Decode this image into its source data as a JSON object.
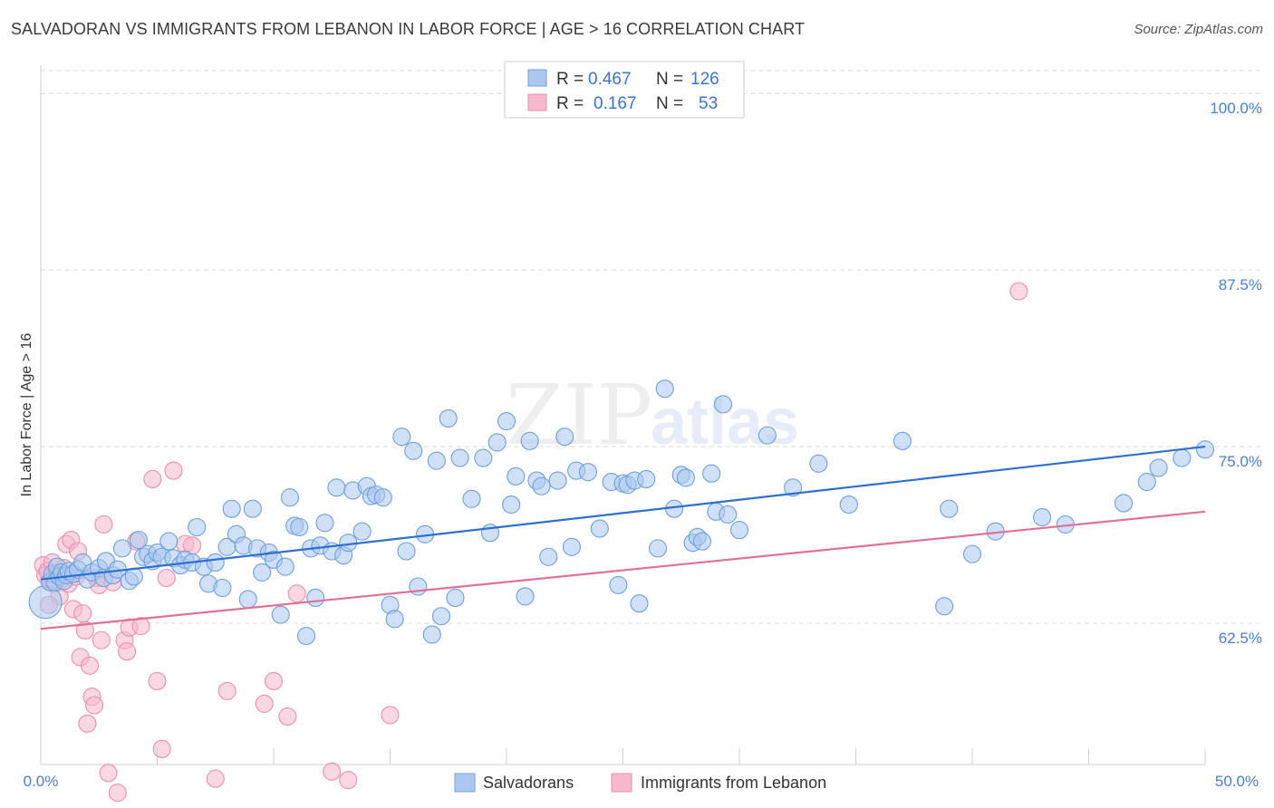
{
  "title": "SALVADORAN VS IMMIGRANTS FROM LEBANON IN LABOR FORCE | AGE > 16 CORRELATION CHART",
  "source": "Source: ZipAtlas.com",
  "watermark": {
    "zip": "ZIP",
    "atlas": "atlas"
  },
  "colors": {
    "blue_fill": "#aac8f0",
    "blue_stroke": "#6f9fdc",
    "blue_line": "#2f6fd0",
    "pink_fill": "#f6b8cc",
    "pink_stroke": "#ea8fae",
    "pink_line": "#e0709a",
    "tick_text": "#4a7ed0",
    "grid": "#d9d9d9"
  },
  "legend": {
    "rows": [
      {
        "r_label": "R = ",
        "r_value": "0.467",
        "n_label": "N = ",
        "n_value": "126"
      },
      {
        "r_label": "R = ",
        "r_value": "0.167",
        "n_label": "N = ",
        "n_value": "53"
      }
    ]
  },
  "chart_data": {
    "type": "scatter",
    "title": "SALVADORAN VS IMMIGRANTS FROM LEBANON IN LABOR FORCE | AGE > 16 CORRELATION CHART",
    "xlabel": "",
    "ylabel": "In Labor Force | Age > 16",
    "xlim": [
      0,
      50
    ],
    "ylim": [
      52.5,
      102
    ],
    "x_tick_labels": [
      "0.0%",
      "50.0%"
    ],
    "y_ticks": [
      62.5,
      75.0,
      87.5,
      100.0
    ],
    "y_tick_labels": [
      "62.5%",
      "75.0%",
      "87.5%",
      "100.0%"
    ],
    "x_minor_ticks": [
      0,
      5,
      10,
      15,
      20,
      25,
      30,
      35,
      40,
      45,
      50
    ],
    "series": [
      {
        "name": "Salvadorans",
        "r": 0.467,
        "n": 126,
        "trend": {
          "x0": 0,
          "y0": 65.6,
          "x1": 50,
          "y1": 75.0
        },
        "points": [
          [
            0.2,
            64.0
          ],
          [
            0.4,
            65.4
          ],
          [
            0.5,
            66.0
          ],
          [
            0.6,
            65.4
          ],
          [
            0.7,
            66.5
          ],
          [
            0.8,
            65.8
          ],
          [
            0.9,
            66.1
          ],
          [
            1.0,
            65.5
          ],
          [
            1.1,
            65.9
          ],
          [
            1.2,
            66.2
          ],
          [
            1.4,
            66.0
          ],
          [
            1.6,
            66.3
          ],
          [
            1.8,
            66.8
          ],
          [
            2.0,
            65.6
          ],
          [
            2.2,
            66.1
          ],
          [
            2.5,
            66.4
          ],
          [
            2.7,
            65.7
          ],
          [
            2.8,
            66.9
          ],
          [
            3.1,
            65.9
          ],
          [
            3.3,
            66.3
          ],
          [
            3.5,
            67.8
          ],
          [
            3.8,
            65.5
          ],
          [
            4.0,
            65.8
          ],
          [
            4.2,
            68.4
          ],
          [
            4.4,
            67.2
          ],
          [
            4.6,
            67.4
          ],
          [
            4.8,
            66.9
          ],
          [
            5.0,
            67.5
          ],
          [
            5.2,
            67.2
          ],
          [
            5.5,
            68.3
          ],
          [
            5.7,
            67.1
          ],
          [
            6.0,
            66.6
          ],
          [
            6.2,
            67.0
          ],
          [
            6.5,
            66.8
          ],
          [
            6.7,
            69.3
          ],
          [
            7.0,
            66.5
          ],
          [
            7.2,
            65.3
          ],
          [
            7.5,
            66.8
          ],
          [
            7.8,
            65.0
          ],
          [
            8.0,
            67.9
          ],
          [
            8.2,
            70.6
          ],
          [
            8.4,
            68.8
          ],
          [
            8.7,
            68.0
          ],
          [
            8.9,
            64.2
          ],
          [
            9.1,
            70.6
          ],
          [
            9.3,
            67.8
          ],
          [
            9.5,
            66.1
          ],
          [
            9.8,
            67.5
          ],
          [
            10.0,
            67.0
          ],
          [
            10.3,
            63.1
          ],
          [
            10.5,
            66.5
          ],
          [
            10.7,
            71.4
          ],
          [
            10.9,
            69.4
          ],
          [
            11.1,
            69.3
          ],
          [
            11.4,
            61.6
          ],
          [
            11.6,
            67.8
          ],
          [
            11.8,
            64.3
          ],
          [
            12.0,
            68.0
          ],
          [
            12.2,
            69.6
          ],
          [
            12.5,
            67.6
          ],
          [
            12.7,
            72.1
          ],
          [
            13.0,
            67.3
          ],
          [
            13.2,
            68.2
          ],
          [
            13.4,
            71.9
          ],
          [
            13.8,
            69.0
          ],
          [
            14.0,
            72.2
          ],
          [
            14.2,
            71.5
          ],
          [
            14.4,
            71.6
          ],
          [
            14.7,
            71.4
          ],
          [
            15.0,
            63.8
          ],
          [
            15.2,
            62.8
          ],
          [
            15.5,
            75.7
          ],
          [
            15.7,
            67.6
          ],
          [
            16.0,
            74.7
          ],
          [
            16.2,
            65.1
          ],
          [
            16.5,
            68.8
          ],
          [
            16.8,
            61.7
          ],
          [
            17.0,
            74.0
          ],
          [
            17.2,
            63.0
          ],
          [
            17.5,
            77.0
          ],
          [
            17.8,
            64.3
          ],
          [
            18.0,
            74.2
          ],
          [
            18.5,
            71.3
          ],
          [
            19.0,
            74.2
          ],
          [
            19.3,
            68.9
          ],
          [
            19.6,
            75.3
          ],
          [
            20.0,
            76.8
          ],
          [
            20.2,
            70.9
          ],
          [
            20.4,
            72.9
          ],
          [
            20.8,
            64.4
          ],
          [
            21.0,
            75.4
          ],
          [
            21.3,
            72.6
          ],
          [
            21.5,
            72.2
          ],
          [
            21.8,
            67.2
          ],
          [
            22.2,
            72.6
          ],
          [
            22.5,
            75.7
          ],
          [
            22.8,
            67.9
          ],
          [
            23.0,
            73.3
          ],
          [
            23.5,
            73.2
          ],
          [
            24.0,
            69.2
          ],
          [
            24.5,
            72.5
          ],
          [
            24.8,
            65.2
          ],
          [
            25.0,
            72.4
          ],
          [
            25.2,
            72.3
          ],
          [
            25.5,
            72.6
          ],
          [
            25.7,
            63.9
          ],
          [
            26.0,
            72.7
          ],
          [
            26.5,
            67.8
          ],
          [
            26.8,
            79.1
          ],
          [
            27.2,
            70.6
          ],
          [
            27.5,
            73.0
          ],
          [
            27.7,
            72.8
          ],
          [
            28.0,
            68.2
          ],
          [
            28.2,
            68.6
          ],
          [
            28.4,
            68.3
          ],
          [
            28.8,
            73.1
          ],
          [
            29.0,
            70.4
          ],
          [
            29.3,
            78.0
          ],
          [
            29.5,
            70.2
          ],
          [
            30.0,
            69.1
          ],
          [
            31.2,
            75.8
          ],
          [
            32.3,
            72.1
          ],
          [
            33.4,
            73.8
          ],
          [
            34.7,
            70.9
          ],
          [
            37.0,
            75.4
          ],
          [
            38.8,
            63.7
          ],
          [
            39.0,
            70.6
          ],
          [
            40.0,
            67.4
          ],
          [
            41.0,
            69.0
          ],
          [
            43.0,
            70.0
          ],
          [
            44.0,
            69.5
          ],
          [
            46.5,
            71.0
          ],
          [
            47.5,
            72.5
          ],
          [
            48.0,
            73.5
          ],
          [
            49.0,
            74.2
          ],
          [
            50.0,
            74.8
          ]
        ]
      },
      {
        "name": "Immigrants from Lebanon",
        "r": 0.167,
        "n": 53,
        "trend": {
          "x0": 0,
          "y0": 62.1,
          "x1": 50,
          "y1": 70.4
        },
        "points": [
          [
            0.1,
            66.6
          ],
          [
            0.2,
            65.9
          ],
          [
            0.3,
            66.2
          ],
          [
            0.4,
            65.5
          ],
          [
            0.5,
            66.8
          ],
          [
            0.6,
            65.3
          ],
          [
            0.7,
            66.0
          ],
          [
            0.8,
            64.4
          ],
          [
            0.9,
            65.6
          ],
          [
            1.0,
            66.4
          ],
          [
            1.1,
            68.1
          ],
          [
            1.2,
            65.3
          ],
          [
            1.3,
            68.4
          ],
          [
            1.4,
            63.5
          ],
          [
            1.5,
            65.8
          ],
          [
            1.6,
            67.6
          ],
          [
            1.7,
            60.1
          ],
          [
            1.8,
            63.2
          ],
          [
            1.9,
            62.0
          ],
          [
            2.0,
            55.4
          ],
          [
            2.1,
            59.5
          ],
          [
            2.2,
            57.3
          ],
          [
            2.3,
            56.7
          ],
          [
            2.4,
            65.7
          ],
          [
            2.5,
            65.2
          ],
          [
            2.6,
            61.3
          ],
          [
            2.7,
            69.5
          ],
          [
            2.9,
            51.9
          ],
          [
            3.1,
            65.4
          ],
          [
            3.3,
            50.5
          ],
          [
            3.6,
            61.3
          ],
          [
            3.7,
            60.5
          ],
          [
            3.8,
            62.2
          ],
          [
            4.1,
            68.3
          ],
          [
            4.3,
            62.3
          ],
          [
            4.8,
            72.7
          ],
          [
            5.0,
            58.4
          ],
          [
            5.2,
            53.6
          ],
          [
            5.4,
            65.7
          ],
          [
            5.7,
            73.3
          ],
          [
            6.2,
            68.1
          ],
          [
            6.5,
            68.0
          ],
          [
            7.5,
            51.5
          ],
          [
            8.0,
            57.7
          ],
          [
            9.6,
            56.8
          ],
          [
            10.0,
            58.4
          ],
          [
            10.6,
            55.9
          ],
          [
            11.0,
            64.6
          ],
          [
            12.5,
            52.0
          ],
          [
            13.2,
            51.4
          ],
          [
            15.0,
            56.0
          ],
          [
            42.0,
            86.0
          ],
          [
            0.35,
            63.8
          ]
        ]
      }
    ],
    "legend_position": "top-center"
  },
  "bottom_legend": [
    "Salvadorans",
    "Immigrants from Lebanon"
  ]
}
